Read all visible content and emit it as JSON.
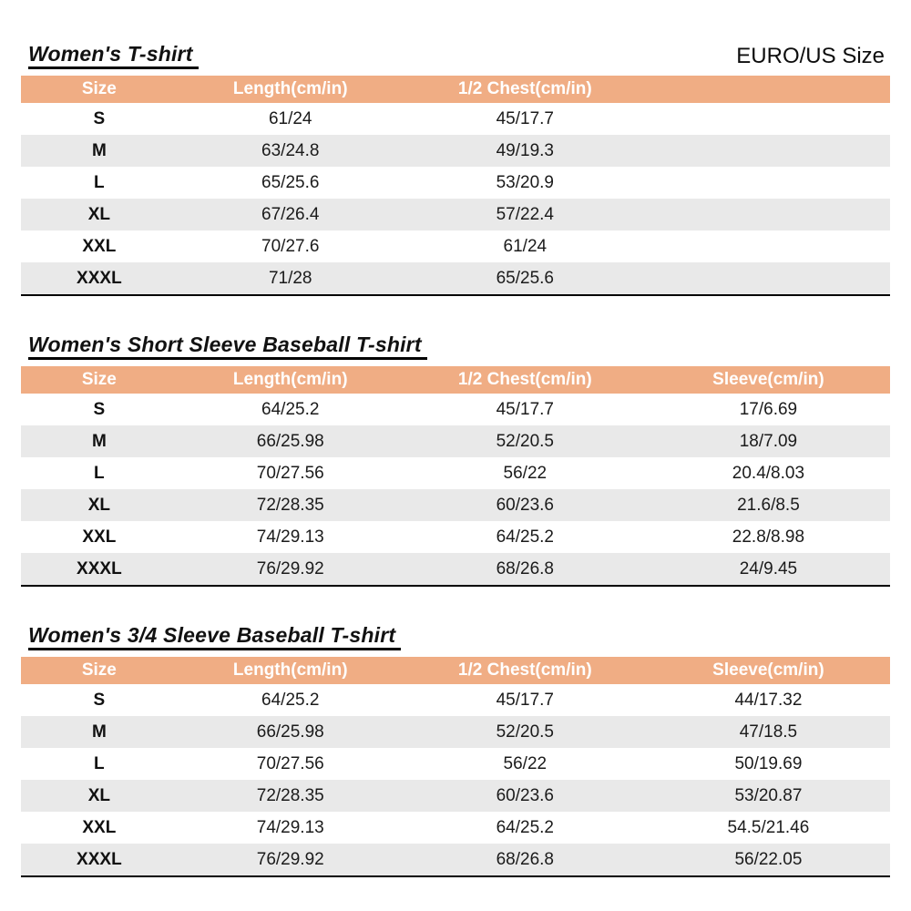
{
  "header": {
    "unit_label": "EURO/US Size"
  },
  "colors": {
    "table_header_bg": "#f0ad84",
    "table_header_text": "#ffffff",
    "row_alt_bg": "#e9e9e9",
    "text": "#1b1b1b",
    "table_bottom_border": "#000000"
  },
  "tables": [
    {
      "title": "Women's T-shirt",
      "columns": [
        "Size",
        "Length(cm/in)",
        "1/2 Chest(cm/in)",
        ""
      ],
      "rows": [
        [
          "S",
          "61/24",
          "45/17.7",
          ""
        ],
        [
          "M",
          "63/24.8",
          "49/19.3",
          ""
        ],
        [
          "L",
          "65/25.6",
          "53/20.9",
          ""
        ],
        [
          "XL",
          "67/26.4",
          "57/22.4",
          ""
        ],
        [
          "XXL",
          "70/27.6",
          "61/24",
          ""
        ],
        [
          "XXXL",
          "71/28",
          "65/25.6",
          ""
        ]
      ]
    },
    {
      "title": "Women's Short Sleeve Baseball T-shirt",
      "columns": [
        "Size",
        "Length(cm/in)",
        "1/2 Chest(cm/in)",
        "Sleeve(cm/in)"
      ],
      "rows": [
        [
          "S",
          "64/25.2",
          "45/17.7",
          "17/6.69"
        ],
        [
          "M",
          "66/25.98",
          "52/20.5",
          "18/7.09"
        ],
        [
          "L",
          "70/27.56",
          "56/22",
          "20.4/8.03"
        ],
        [
          "XL",
          "72/28.35",
          "60/23.6",
          "21.6/8.5"
        ],
        [
          "XXL",
          "74/29.13",
          "64/25.2",
          "22.8/8.98"
        ],
        [
          "XXXL",
          "76/29.92",
          "68/26.8",
          "24/9.45"
        ]
      ]
    },
    {
      "title": "Women's 3/4 Sleeve Baseball T-shirt",
      "columns": [
        "Size",
        "Length(cm/in)",
        "1/2 Chest(cm/in)",
        "Sleeve(cm/in)"
      ],
      "rows": [
        [
          "S",
          "64/25.2",
          "45/17.7",
          "44/17.32"
        ],
        [
          "M",
          "66/25.98",
          "52/20.5",
          "47/18.5"
        ],
        [
          "L",
          "70/27.56",
          "56/22",
          "50/19.69"
        ],
        [
          "XL",
          "72/28.35",
          "60/23.6",
          "53/20.87"
        ],
        [
          "XXL",
          "74/29.13",
          "64/25.2",
          "54.5/21.46"
        ],
        [
          "XXXL",
          "76/29.92",
          "68/26.8",
          "56/22.05"
        ]
      ]
    }
  ]
}
